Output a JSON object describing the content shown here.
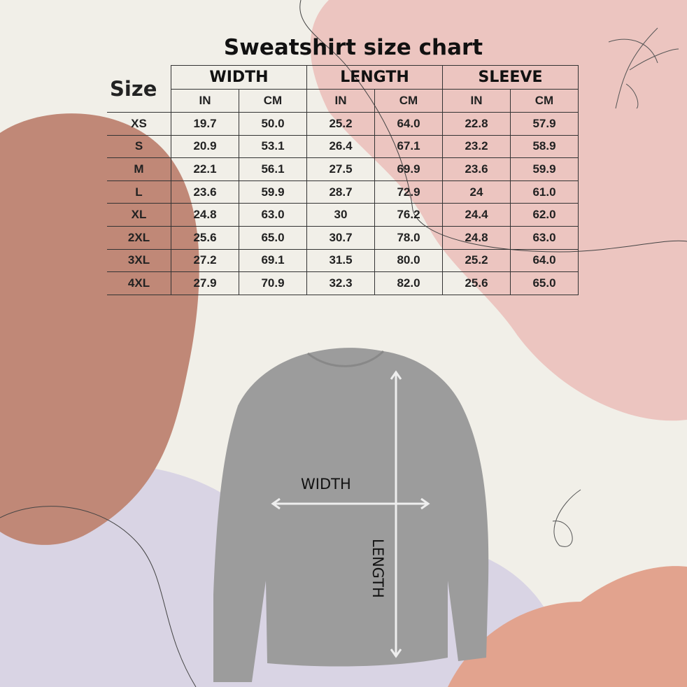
{
  "title": "Sweatshirt size chart",
  "table": {
    "size_header": "Size",
    "groups": [
      "WIDTH",
      "LENGTH",
      "SLEEVE"
    ],
    "units": [
      "IN",
      "CM",
      "IN",
      "CM",
      "IN",
      "CM"
    ],
    "rows": [
      [
        "XS",
        "19.7",
        "50.0",
        "25.2",
        "64.0",
        "22.8",
        "57.9"
      ],
      [
        "S",
        "20.9",
        "53.1",
        "26.4",
        "67.1",
        "23.2",
        "58.9"
      ],
      [
        "M",
        "22.1",
        "56.1",
        "27.5",
        "69.9",
        "23.6",
        "59.9"
      ],
      [
        "L",
        "23.6",
        "59.9",
        "28.7",
        "72.9",
        "24",
        "61.0"
      ],
      [
        "XL",
        "24.8",
        "63.0",
        "30",
        "76.2",
        "24.4",
        "62.0"
      ],
      [
        "2XL",
        "25.6",
        "65.0",
        "30.7",
        "78.0",
        "24.8",
        "63.0"
      ],
      [
        "3XL",
        "27.2",
        "69.1",
        "31.5",
        "80.0",
        "25.2",
        "64.0"
      ],
      [
        "4XL",
        "27.9",
        "70.9",
        "32.3",
        "82.0",
        "25.6",
        "65.0"
      ]
    ]
  },
  "diagram": {
    "width_label": "WIDTH",
    "length_label": "LENGTH"
  },
  "colors": {
    "background": "#f1efe8",
    "terracotta": "#c08877",
    "pink": "#ecc5c0",
    "lavender": "#d9d4e4",
    "salmon": "#e2a38e",
    "sweatshirt": "#9c9c9c"
  }
}
